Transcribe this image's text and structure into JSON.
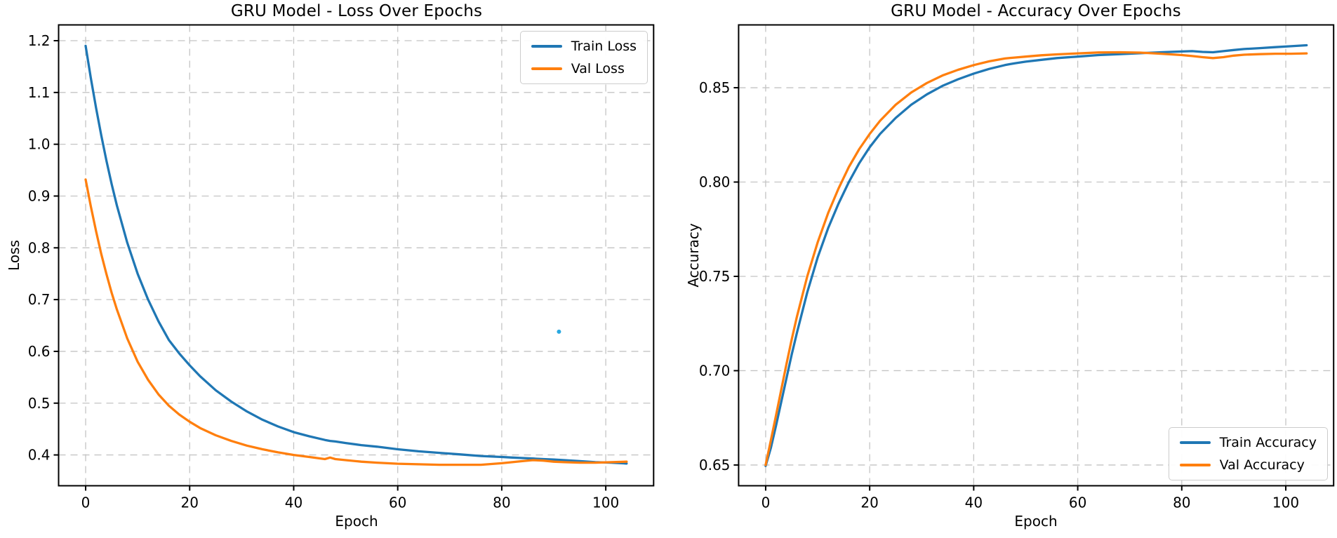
{
  "figure": {
    "background": "#ffffff",
    "colors": {
      "train_line": "#1f77b4",
      "val_line": "#ff7f0e",
      "grid": "#c4c4c4",
      "spine": "#000000",
      "text": "#000000",
      "stray_dot": "#2aa9e1"
    }
  },
  "chart_data": [
    {
      "type": "line",
      "title": "GRU Model - Loss Over Epochs",
      "xlabel": "Epoch",
      "ylabel": "Loss",
      "xlim": [
        -5.2,
        109.2
      ],
      "ylim": [
        0.3405,
        1.2305
      ],
      "grid": true,
      "legend": {
        "position": "upper right",
        "entries": [
          "Train Loss",
          "Val Loss"
        ]
      },
      "x_ticks": [
        {
          "v": 0,
          "label": "0"
        },
        {
          "v": 20,
          "label": "20"
        },
        {
          "v": 40,
          "label": "40"
        },
        {
          "v": 60,
          "label": "60"
        },
        {
          "v": 80,
          "label": "80"
        },
        {
          "v": 100,
          "label": "100"
        }
      ],
      "y_ticks": [
        {
          "v": 0.4,
          "label": "0.4"
        },
        {
          "v": 0.5,
          "label": "0.5"
        },
        {
          "v": 0.6,
          "label": "0.6"
        },
        {
          "v": 0.7,
          "label": "0.7"
        },
        {
          "v": 0.8,
          "label": "0.8"
        },
        {
          "v": 0.9,
          "label": "0.9"
        },
        {
          "v": 1.0,
          "label": "1.0"
        },
        {
          "v": 1.1,
          "label": "1.1"
        },
        {
          "v": 1.2,
          "label": "1.2"
        }
      ],
      "x": [
        0,
        1,
        2,
        3,
        4,
        5,
        6,
        8,
        10,
        12,
        14,
        16,
        18,
        20,
        22,
        25,
        28,
        31,
        34,
        37,
        40,
        43,
        46,
        47,
        48,
        50,
        53,
        56,
        60,
        64,
        68,
        72,
        76,
        80,
        82,
        84,
        86,
        88,
        90,
        92,
        95,
        98,
        101,
        104
      ],
      "series": [
        {
          "name": "Train Loss",
          "color": "#1f77b4",
          "values": [
            1.19,
            1.128,
            1.07,
            1.017,
            0.968,
            0.923,
            0.882,
            0.81,
            0.75,
            0.7,
            0.658,
            0.622,
            0.596,
            0.573,
            0.552,
            0.525,
            0.503,
            0.484,
            0.468,
            0.455,
            0.444,
            0.436,
            0.429,
            0.427,
            0.426,
            0.423,
            0.419,
            0.416,
            0.411,
            0.407,
            0.404,
            0.401,
            0.398,
            0.396,
            0.395,
            0.394,
            0.393,
            0.392,
            0.391,
            0.39,
            0.388,
            0.386,
            0.385,
            0.3835
          ]
        },
        {
          "name": "Val Loss",
          "color": "#ff7f0e",
          "values": [
            0.932,
            0.88,
            0.832,
            0.788,
            0.749,
            0.713,
            0.681,
            0.625,
            0.58,
            0.545,
            0.517,
            0.495,
            0.478,
            0.464,
            0.452,
            0.438,
            0.427,
            0.418,
            0.411,
            0.405,
            0.4,
            0.396,
            0.392,
            0.395,
            0.392,
            0.39,
            0.387,
            0.385,
            0.383,
            0.382,
            0.381,
            0.381,
            0.381,
            0.384,
            0.386,
            0.388,
            0.39,
            0.389,
            0.387,
            0.386,
            0.385,
            0.385,
            0.386,
            0.387
          ]
        }
      ],
      "stray_point": {
        "x": 91,
        "y": 0.638,
        "color": "#2aa9e1"
      }
    },
    {
      "type": "line",
      "title": "GRU Model - Accuracy Over Epochs",
      "xlabel": "Epoch",
      "ylabel": "Accuracy",
      "xlim": [
        -5.2,
        109.2
      ],
      "ylim": [
        0.639,
        0.8833
      ],
      "grid": true,
      "legend": {
        "position": "lower right",
        "entries": [
          "Train Accuracy",
          "Val Accuracy"
        ]
      },
      "x_ticks": [
        {
          "v": 0,
          "label": "0"
        },
        {
          "v": 20,
          "label": "20"
        },
        {
          "v": 40,
          "label": "40"
        },
        {
          "v": 60,
          "label": "60"
        },
        {
          "v": 80,
          "label": "80"
        },
        {
          "v": 100,
          "label": "100"
        }
      ],
      "y_ticks": [
        {
          "v": 0.65,
          "label": "0.65"
        },
        {
          "v": 0.7,
          "label": "0.70"
        },
        {
          "v": 0.75,
          "label": "0.75"
        },
        {
          "v": 0.8,
          "label": "0.80"
        },
        {
          "v": 0.85,
          "label": "0.85"
        }
      ],
      "x": [
        0,
        1,
        2,
        3,
        4,
        5,
        6,
        8,
        10,
        12,
        14,
        16,
        18,
        20,
        22,
        25,
        28,
        31,
        34,
        37,
        40,
        43,
        46,
        47,
        48,
        50,
        53,
        56,
        60,
        64,
        68,
        72,
        76,
        80,
        82,
        84,
        86,
        88,
        90,
        92,
        95,
        98,
        101,
        104
      ],
      "series": [
        {
          "name": "Train Accuracy",
          "color": "#1f77b4",
          "values": [
            0.6495,
            0.659,
            0.671,
            0.6835,
            0.696,
            0.7085,
            0.72,
            0.7415,
            0.76,
            0.7755,
            0.7885,
            0.8,
            0.81,
            0.8185,
            0.8255,
            0.834,
            0.841,
            0.8465,
            0.851,
            0.8545,
            0.8575,
            0.86,
            0.862,
            0.8625,
            0.863,
            0.8638,
            0.8648,
            0.8657,
            0.8665,
            0.8673,
            0.8678,
            0.8683,
            0.8688,
            0.8692,
            0.8694,
            0.869,
            0.8688,
            0.8694,
            0.87,
            0.8705,
            0.871,
            0.8715,
            0.872,
            0.8725
          ]
        },
        {
          "name": "Val Accuracy",
          "color": "#ff7f0e",
          "values": [
            0.65,
            0.663,
            0.6765,
            0.69,
            0.7035,
            0.7165,
            0.7285,
            0.75,
            0.768,
            0.7835,
            0.7965,
            0.808,
            0.8175,
            0.8255,
            0.8325,
            0.841,
            0.8475,
            0.8525,
            0.8565,
            0.8595,
            0.862,
            0.864,
            0.8655,
            0.8658,
            0.866,
            0.8665,
            0.8672,
            0.8677,
            0.8682,
            0.8687,
            0.8688,
            0.8686,
            0.868,
            0.8673,
            0.8668,
            0.8662,
            0.8657,
            0.8662,
            0.867,
            0.8675,
            0.8678,
            0.868,
            0.868,
            0.8682
          ]
        }
      ]
    }
  ]
}
